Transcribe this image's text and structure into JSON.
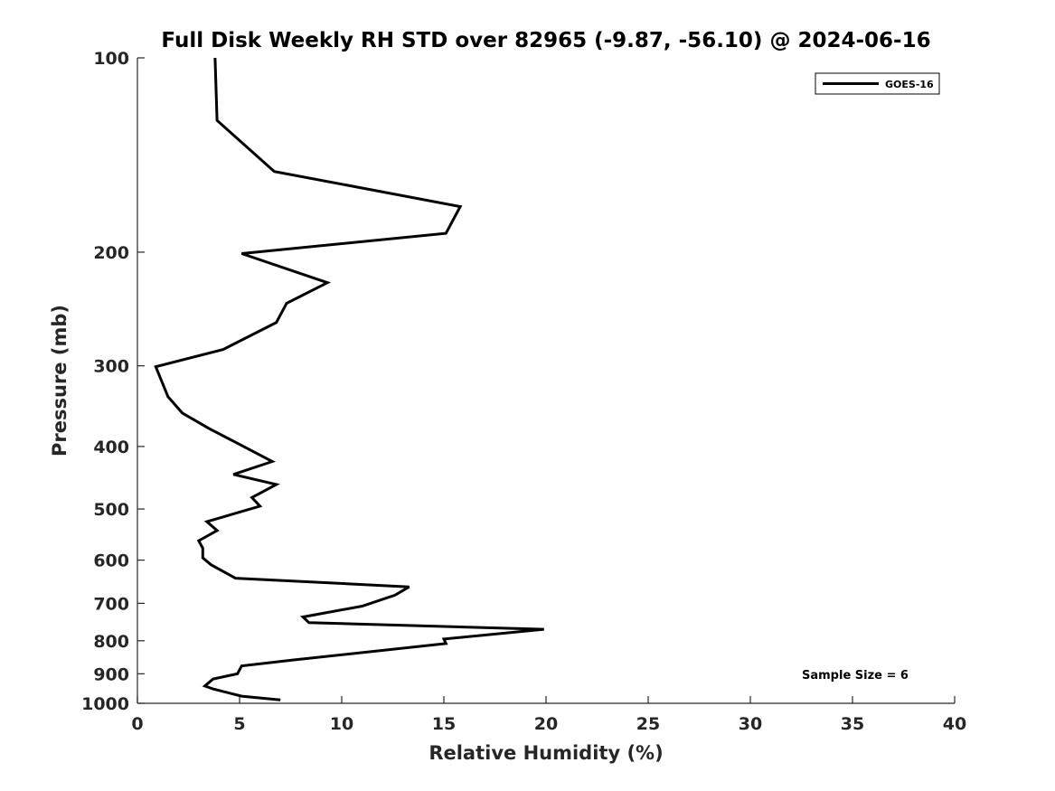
{
  "chart_data": {
    "type": "line",
    "title": "Full Disk Weekly RH STD over 82965 (-9.87, -56.10) @ 2024-06-16",
    "xlabel": "Relative Humidity (%)",
    "ylabel": "Pressure (mb)",
    "xlim": [
      0,
      40
    ],
    "ylim": [
      1000,
      100
    ],
    "yscale": "log",
    "y_reversed": true,
    "grid": false,
    "legend_position": "top-right",
    "xticks": [
      0,
      5,
      10,
      15,
      20,
      25,
      30,
      35,
      40
    ],
    "xtick_labels": [
      "0",
      "5",
      "10",
      "15",
      "20",
      "25",
      "30",
      "35",
      "40"
    ],
    "yticks": [
      100,
      200,
      300,
      400,
      500,
      600,
      700,
      800,
      900,
      1000
    ],
    "ytick_labels": [
      "100",
      "200",
      "300",
      "400",
      "500",
      "600",
      "700",
      "800",
      "900",
      "1000"
    ],
    "annotation": "Sample Size = 6",
    "series": [
      {
        "name": "GOES-16",
        "color": "#000000",
        "points": [
          [
            3.8,
            100
          ],
          [
            3.9,
            125
          ],
          [
            6.7,
            150
          ],
          [
            15.8,
            170
          ],
          [
            15.1,
            187
          ],
          [
            5.1,
            201
          ],
          [
            9.3,
            223
          ],
          [
            7.3,
            240
          ],
          [
            6.8,
            257
          ],
          [
            4.2,
            283
          ],
          [
            0.9,
            301
          ],
          [
            1.5,
            335
          ],
          [
            2.2,
            355
          ],
          [
            3.5,
            375
          ],
          [
            6.6,
            422
          ],
          [
            4.7,
            442
          ],
          [
            6.8,
            458
          ],
          [
            5.6,
            480
          ],
          [
            6.0,
            495
          ],
          [
            3.4,
            523
          ],
          [
            3.9,
            540
          ],
          [
            3.0,
            560
          ],
          [
            3.2,
            575
          ],
          [
            3.2,
            595
          ],
          [
            3.6,
            610
          ],
          [
            4.8,
            640
          ],
          [
            13.3,
            660
          ],
          [
            12.6,
            680
          ],
          [
            11.0,
            707
          ],
          [
            8.1,
            735
          ],
          [
            8.4,
            750
          ],
          [
            19.9,
            768
          ],
          [
            15.0,
            795
          ],
          [
            15.1,
            808
          ],
          [
            7.6,
            857
          ],
          [
            5.1,
            875
          ],
          [
            4.9,
            900
          ],
          [
            3.7,
            917
          ],
          [
            3.3,
            940
          ],
          [
            3.7,
            950
          ],
          [
            5.1,
            975
          ],
          [
            7.0,
            988
          ]
        ]
      }
    ]
  }
}
